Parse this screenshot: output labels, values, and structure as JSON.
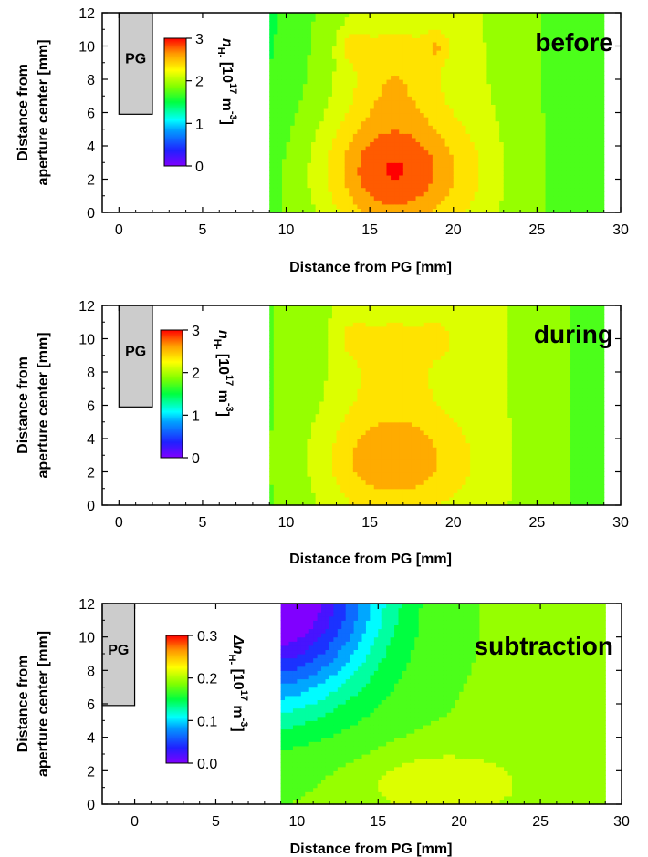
{
  "chart_data": [
    {
      "type": "heatmap",
      "panel_label": "before",
      "xlabel": "Distance from PG [mm]",
      "ylabel_line1": "Distance from",
      "ylabel_line2": "aperture center [mm]",
      "xlim": [
        -1,
        30
      ],
      "ylim": [
        0,
        12
      ],
      "x_ticks": [
        "0",
        "5",
        "10",
        "15",
        "20",
        "25",
        "30"
      ],
      "y_ticks": [
        "0",
        "2",
        "4",
        "6",
        "8",
        "10",
        "12"
      ],
      "pg": {
        "label": "PG",
        "x_range": [
          0,
          2
        ],
        "y_range": [
          5.9,
          12
        ]
      },
      "data_x_range": [
        9,
        29
      ],
      "data_y_range": [
        0,
        12
      ],
      "colorbar": {
        "label_main": "n",
        "label_sub": "H-",
        "label_units": "[10",
        "label_exp": "17",
        "label_m": "m",
        "label_exp2": "-3",
        "label_end": "]",
        "ticks": [
          "0",
          "1",
          "2",
          "3"
        ],
        "range": [
          0,
          3
        ]
      },
      "field": {
        "peak_value": 2.85,
        "peak_center": [
          16.5,
          2.5
        ],
        "hot_spots": [
          [
            14,
            10
          ],
          [
            19,
            10
          ]
        ],
        "edge_value_left": 1.8,
        "edge_value_right": 2.05
      }
    },
    {
      "type": "heatmap",
      "panel_label": "during",
      "xlabel": "Distance from PG [mm]",
      "ylabel_line1": "Distance from",
      "ylabel_line2": "aperture center [mm]",
      "xlim": [
        -1,
        30
      ],
      "ylim": [
        0,
        12
      ],
      "x_ticks": [
        "0",
        "5",
        "10",
        "15",
        "20",
        "25",
        "30"
      ],
      "y_ticks": [
        "0",
        "2",
        "4",
        "6",
        "8",
        "10",
        "12"
      ],
      "pg": {
        "label": "PG",
        "x_range": [
          0,
          2
        ],
        "y_range": [
          5.9,
          12
        ]
      },
      "data_x_range": [
        9,
        29
      ],
      "data_y_range": [
        0,
        12
      ],
      "colorbar": {
        "label_main": "n",
        "label_sub": "H-",
        "label_units": "[10",
        "label_exp": "17",
        "label_m": "m",
        "label_exp2": "-3",
        "label_end": "]",
        "ticks": [
          "0",
          "1",
          "2",
          "3"
        ],
        "range": [
          0,
          3
        ]
      },
      "field": {
        "peak_value": 2.6,
        "peak_center": [
          16.5,
          2.8
        ],
        "hot_spots": [
          [
            14,
            10
          ],
          [
            19,
            10
          ]
        ],
        "edge_value_left": 1.75,
        "edge_value_right": 2.0
      }
    },
    {
      "type": "heatmap",
      "panel_label": "subtraction",
      "xlabel": "Distance from PG [mm]",
      "ylabel_line1": "Distance from",
      "ylabel_line2": "aperture center [mm]",
      "xlim": [
        -2,
        30
      ],
      "ylim": [
        0,
        12
      ],
      "x_ticks": [
        "0",
        "5",
        "10",
        "15",
        "20",
        "25",
        "30"
      ],
      "y_ticks": [
        "0",
        "2",
        "4",
        "6",
        "8",
        "10",
        "12"
      ],
      "pg": {
        "label": "PG",
        "x_range": [
          -2,
          0
        ],
        "y_range": [
          5.9,
          12
        ]
      },
      "data_x_range": [
        9,
        29
      ],
      "data_y_range": [
        0,
        12
      ],
      "colorbar": {
        "label_main": "Δn",
        "label_sub": "H-",
        "label_units": "[10",
        "label_exp": "17",
        "label_m": "m",
        "label_exp2": "-3",
        "label_end": "]",
        "ticks": [
          "0.0",
          "0.1",
          "0.2",
          "0.3"
        ],
        "range": [
          0,
          0.3
        ]
      },
      "field": {
        "min_value": 0.01,
        "min_corner": [
          9,
          12
        ],
        "max_value": 0.23,
        "max_center": [
          19,
          1.2
        ],
        "background_value": 0.185
      }
    }
  ]
}
